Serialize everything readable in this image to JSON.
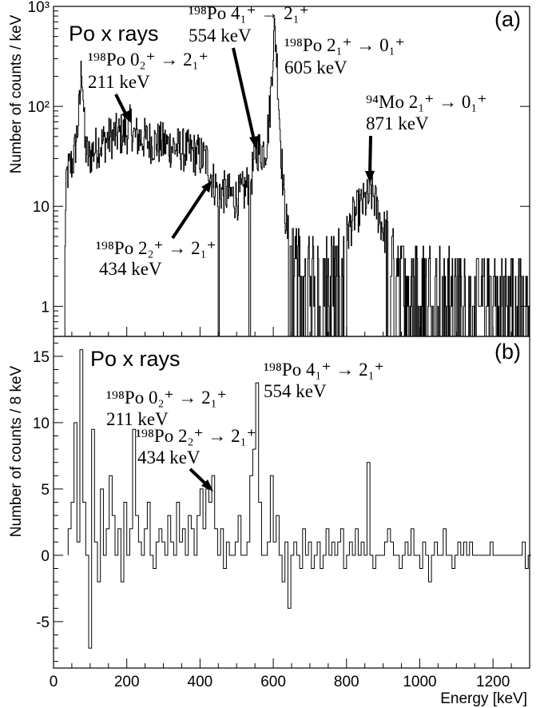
{
  "chart_data": [
    {
      "type": "histogram",
      "panel": "(a)",
      "ylabel": "Number of counts / keV",
      "xlim": [
        0,
        1300
      ],
      "ylim": [
        0.5,
        1000
      ],
      "yscale": "log",
      "yticks": [
        {
          "value": 1000,
          "label": "10³"
        },
        {
          "value": 100,
          "label": "10²"
        },
        {
          "value": 10,
          "label": "10"
        },
        {
          "value": 1,
          "label": "1"
        }
      ],
      "tag": "Po x rays",
      "annotations": [
        {
          "label": "¹⁹⁸Po 0₂⁺ → 2₁⁺",
          "energy": "211 keV"
        },
        {
          "label": "¹⁹⁸Po 4₁⁺ → 2₁⁺",
          "energy": "554 keV"
        },
        {
          "label": "¹⁹⁸Po 2₁⁺ → 0₁⁺",
          "energy": "605 keV"
        },
        {
          "label": "⁹⁴Mo 2₁⁺ → 0₁⁺",
          "energy": "871 keV"
        },
        {
          "label": "¹⁹⁸Po 2₂⁺ → 2₁⁺",
          "energy": "434 keV"
        }
      ],
      "envelope": [
        [
          25,
          0.5
        ],
        [
          35,
          20
        ],
        [
          45,
          25
        ],
        [
          55,
          30
        ],
        [
          65,
          60
        ],
        [
          72,
          120
        ],
        [
          76,
          280
        ],
        [
          80,
          150
        ],
        [
          85,
          40
        ],
        [
          95,
          30
        ],
        [
          105,
          35
        ],
        [
          120,
          40
        ],
        [
          140,
          45
        ],
        [
          160,
          50
        ],
        [
          180,
          52
        ],
        [
          200,
          55
        ],
        [
          211,
          65
        ],
        [
          220,
          50
        ],
        [
          240,
          48
        ],
        [
          260,
          45
        ],
        [
          280,
          43
        ],
        [
          300,
          42
        ],
        [
          320,
          40
        ],
        [
          340,
          38
        ],
        [
          360,
          36
        ],
        [
          380,
          34
        ],
        [
          400,
          32
        ],
        [
          420,
          28
        ],
        [
          434,
          18
        ],
        [
          445,
          15
        ],
        [
          460,
          14
        ],
        [
          480,
          13
        ],
        [
          500,
          12
        ],
        [
          520,
          14
        ],
        [
          540,
          20
        ],
        [
          554,
          38
        ],
        [
          565,
          35
        ],
        [
          580,
          40
        ],
        [
          590,
          90
        ],
        [
          596,
          250
        ],
        [
          600,
          420
        ],
        [
          603,
          580
        ],
        [
          607,
          420
        ],
        [
          612,
          180
        ],
        [
          620,
          40
        ],
        [
          630,
          10
        ],
        [
          640,
          5
        ],
        [
          650,
          3.5
        ],
        [
          670,
          3.2
        ],
        [
          700,
          3.0
        ],
        [
          740,
          2.8
        ],
        [
          780,
          3.0
        ],
        [
          800,
          5
        ],
        [
          820,
          8
        ],
        [
          840,
          10
        ],
        [
          860,
          12
        ],
        [
          871,
          14
        ],
        [
          880,
          10
        ],
        [
          900,
          6
        ],
        [
          930,
          3
        ],
        [
          960,
          2.5
        ],
        [
          1000,
          2.2
        ],
        [
          1050,
          2.0
        ],
        [
          1100,
          1.9
        ],
        [
          1150,
          1.8
        ],
        [
          1200,
          1.8
        ],
        [
          1250,
          1.7
        ],
        [
          1300,
          1.7
        ]
      ]
    },
    {
      "type": "histogram",
      "panel": "(b)",
      "xlabel": "Energy [keV]",
      "ylabel": "Number of counts / 8 keV",
      "xlim": [
        0,
        1300
      ],
      "ylim": [
        -8.5,
        16.5
      ],
      "xticks": [
        0,
        200,
        400,
        600,
        800,
        1000,
        1200
      ],
      "yticks": [
        15,
        10,
        5,
        0,
        -5
      ],
      "binwidth": 8,
      "tag": "Po x rays",
      "annotations": [
        {
          "label": "¹⁹⁸Po 0₂⁺ → 2₁⁺",
          "energy": "211 keV"
        },
        {
          "label": "¹⁹⁸Po 2₂⁺ → 2₁⁺",
          "energy": "434 keV"
        },
        {
          "label": "¹⁹⁸Po 4₁⁺ → 2₁⁺",
          "energy": "554 keV"
        }
      ],
      "bins": [
        [
          40,
          2
        ],
        [
          48,
          4
        ],
        [
          56,
          10
        ],
        [
          64,
          1
        ],
        [
          72,
          15.5
        ],
        [
          80,
          4
        ],
        [
          88,
          0
        ],
        [
          96,
          -7
        ],
        [
          104,
          9.5
        ],
        [
          112,
          1
        ],
        [
          120,
          -2
        ],
        [
          128,
          5
        ],
        [
          136,
          0
        ],
        [
          144,
          2
        ],
        [
          152,
          6
        ],
        [
          160,
          3
        ],
        [
          168,
          0
        ],
        [
          176,
          2
        ],
        [
          184,
          -2
        ],
        [
          192,
          4
        ],
        [
          200,
          0
        ],
        [
          208,
          2
        ],
        [
          216,
          9.5
        ],
        [
          224,
          3
        ],
        [
          232,
          1
        ],
        [
          240,
          0
        ],
        [
          248,
          2
        ],
        [
          256,
          4
        ],
        [
          264,
          0
        ],
        [
          272,
          -1
        ],
        [
          280,
          1
        ],
        [
          288,
          2
        ],
        [
          296,
          1
        ],
        [
          304,
          0
        ],
        [
          312,
          3
        ],
        [
          320,
          1
        ],
        [
          328,
          0
        ],
        [
          336,
          4
        ],
        [
          344,
          1
        ],
        [
          352,
          2
        ],
        [
          360,
          0
        ],
        [
          368,
          3
        ],
        [
          376,
          2
        ],
        [
          384,
          0
        ],
        [
          392,
          3
        ],
        [
          400,
          5
        ],
        [
          408,
          2
        ],
        [
          416,
          5
        ],
        [
          424,
          4
        ],
        [
          432,
          6
        ],
        [
          440,
          2
        ],
        [
          448,
          0
        ],
        [
          456,
          2
        ],
        [
          464,
          -1
        ],
        [
          472,
          1
        ],
        [
          480,
          0
        ],
        [
          488,
          0
        ],
        [
          496,
          1
        ],
        [
          504,
          3
        ],
        [
          512,
          0
        ],
        [
          520,
          0
        ],
        [
          528,
          1
        ],
        [
          536,
          6
        ],
        [
          544,
          8
        ],
        [
          552,
          13
        ],
        [
          560,
          4
        ],
        [
          568,
          0
        ],
        [
          576,
          0
        ],
        [
          584,
          1
        ],
        [
          592,
          6
        ],
        [
          600,
          1
        ],
        [
          608,
          3
        ],
        [
          616,
          0
        ],
        [
          624,
          -2
        ],
        [
          632,
          1
        ],
        [
          640,
          -4
        ],
        [
          648,
          0
        ],
        [
          656,
          1
        ],
        [
          664,
          0
        ],
        [
          672,
          -1
        ],
        [
          680,
          2
        ],
        [
          688,
          0
        ],
        [
          696,
          1
        ],
        [
          704,
          -1
        ],
        [
          712,
          0
        ],
        [
          720,
          1
        ],
        [
          728,
          -1
        ],
        [
          736,
          0
        ],
        [
          744,
          2
        ],
        [
          752,
          0
        ],
        [
          760,
          1
        ],
        [
          768,
          0
        ],
        [
          776,
          1
        ],
        [
          784,
          2
        ],
        [
          792,
          -1
        ],
        [
          800,
          0
        ],
        [
          808,
          1
        ],
        [
          816,
          0
        ],
        [
          824,
          2
        ],
        [
          832,
          0
        ],
        [
          840,
          1
        ],
        [
          848,
          0
        ],
        [
          856,
          7
        ],
        [
          864,
          0
        ],
        [
          872,
          -1
        ],
        [
          880,
          0
        ],
        [
          888,
          0
        ],
        [
          896,
          0
        ],
        [
          904,
          1
        ],
        [
          912,
          2
        ],
        [
          920,
          1
        ],
        [
          928,
          0
        ],
        [
          936,
          0
        ],
        [
          944,
          -1
        ],
        [
          952,
          0
        ],
        [
          960,
          1
        ],
        [
          968,
          0
        ],
        [
          976,
          2
        ],
        [
          984,
          0
        ],
        [
          992,
          0
        ],
        [
          1000,
          -1
        ],
        [
          1008,
          1
        ],
        [
          1016,
          0
        ],
        [
          1024,
          -2
        ],
        [
          1032,
          0
        ],
        [
          1040,
          1
        ],
        [
          1048,
          0
        ],
        [
          1056,
          0
        ],
        [
          1064,
          2
        ],
        [
          1072,
          0
        ],
        [
          1080,
          0
        ],
        [
          1088,
          -1
        ],
        [
          1096,
          0
        ],
        [
          1104,
          1
        ],
        [
          1112,
          0
        ],
        [
          1120,
          1
        ],
        [
          1128,
          0
        ],
        [
          1136,
          1
        ],
        [
          1144,
          0
        ],
        [
          1152,
          0
        ],
        [
          1160,
          0
        ],
        [
          1168,
          0
        ],
        [
          1176,
          0
        ],
        [
          1184,
          0
        ],
        [
          1192,
          1
        ],
        [
          1200,
          0
        ],
        [
          1208,
          0
        ],
        [
          1216,
          0
        ],
        [
          1224,
          0
        ],
        [
          1232,
          0
        ],
        [
          1240,
          0
        ],
        [
          1248,
          0
        ],
        [
          1256,
          0
        ],
        [
          1264,
          0
        ],
        [
          1272,
          0
        ],
        [
          1280,
          1
        ],
        [
          1288,
          -1
        ],
        [
          1296,
          0
        ]
      ]
    }
  ]
}
